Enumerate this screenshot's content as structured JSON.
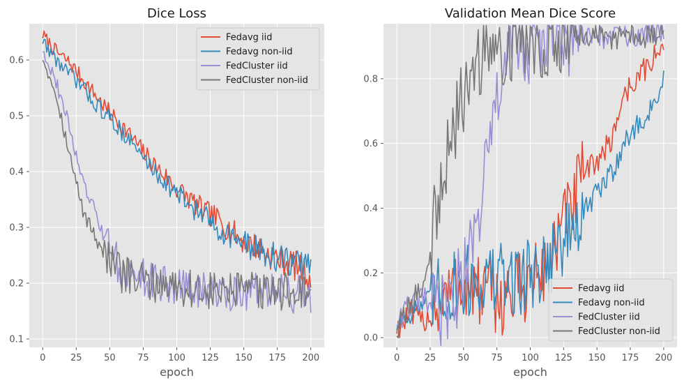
{
  "chart_data": [
    {
      "type": "line",
      "title": "Dice Loss",
      "xlabel": "epoch",
      "ylabel": "",
      "xlim": [
        -10,
        210
      ],
      "ylim": [
        0.085,
        0.665
      ],
      "xticks": [
        0,
        25,
        50,
        75,
        100,
        125,
        150,
        175,
        200
      ],
      "yticks": [
        0.1,
        0.2,
        0.3,
        0.4,
        0.5,
        0.6
      ],
      "ytick_labels": [
        "0.1",
        "0.2",
        "0.3",
        "0.4",
        "0.5",
        "0.6"
      ],
      "grid": true,
      "legend": "top-right",
      "series": [
        {
          "name": "Fedavg iid",
          "color": "#E24A33",
          "points": [
            [
              0,
              0.645
            ],
            [
              10,
              0.615
            ],
            [
              20,
              0.595
            ],
            [
              30,
              0.565
            ],
            [
              40,
              0.535
            ],
            [
              50,
              0.505
            ],
            [
              60,
              0.48
            ],
            [
              70,
              0.45
            ],
            [
              80,
              0.42
            ],
            [
              90,
              0.395
            ],
            [
              100,
              0.37
            ],
            [
              110,
              0.35
            ],
            [
              120,
              0.33
            ],
            [
              130,
              0.315
            ],
            [
              140,
              0.295
            ],
            [
              150,
              0.275
            ],
            [
              160,
              0.265
            ],
            [
              170,
              0.25
            ],
            [
              180,
              0.24
            ],
            [
              190,
              0.23
            ],
            [
              200,
              0.21
            ]
          ]
        },
        {
          "name": "Fedavg non-iid",
          "color": "#348ABD",
          "points": [
            [
              0,
              0.635
            ],
            [
              10,
              0.6
            ],
            [
              20,
              0.575
            ],
            [
              30,
              0.55
            ],
            [
              40,
              0.52
            ],
            [
              50,
              0.495
            ],
            [
              60,
              0.47
            ],
            [
              70,
              0.44
            ],
            [
              80,
              0.41
            ],
            [
              90,
              0.385
            ],
            [
              100,
              0.36
            ],
            [
              110,
              0.34
            ],
            [
              120,
              0.32
            ],
            [
              130,
              0.3
            ],
            [
              140,
              0.285
            ],
            [
              150,
              0.27
            ],
            [
              160,
              0.26
            ],
            [
              170,
              0.25
            ],
            [
              180,
              0.24
            ],
            [
              190,
              0.235
            ],
            [
              200,
              0.235
            ]
          ]
        },
        {
          "name": "FedCluster iid",
          "color": "#988ED5",
          "points": [
            [
              0,
              0.62
            ],
            [
              10,
              0.56
            ],
            [
              20,
              0.48
            ],
            [
              30,
              0.38
            ],
            [
              40,
              0.32
            ],
            [
              50,
              0.26
            ],
            [
              60,
              0.22
            ],
            [
              70,
              0.215
            ],
            [
              80,
              0.205
            ],
            [
              90,
              0.2
            ],
            [
              100,
              0.195
            ],
            [
              110,
              0.19
            ],
            [
              120,
              0.185
            ],
            [
              130,
              0.185
            ],
            [
              140,
              0.185
            ],
            [
              150,
              0.185
            ],
            [
              160,
              0.19
            ],
            [
              170,
              0.185
            ],
            [
              180,
              0.18
            ],
            [
              190,
              0.18
            ],
            [
              200,
              0.175
            ]
          ]
        },
        {
          "name": "FedCluster non-iid",
          "color": "#777777",
          "points": [
            [
              0,
              0.605
            ],
            [
              10,
              0.54
            ],
            [
              20,
              0.43
            ],
            [
              30,
              0.33
            ],
            [
              40,
              0.28
            ],
            [
              50,
              0.24
            ],
            [
              60,
              0.215
            ],
            [
              70,
              0.205
            ],
            [
              80,
              0.2
            ],
            [
              90,
              0.2
            ],
            [
              100,
              0.195
            ],
            [
              110,
              0.19
            ],
            [
              120,
              0.185
            ],
            [
              130,
              0.185
            ],
            [
              140,
              0.185
            ],
            [
              150,
              0.185
            ],
            [
              160,
              0.185
            ],
            [
              170,
              0.185
            ],
            [
              180,
              0.185
            ],
            [
              190,
              0.185
            ],
            [
              200,
              0.185
            ]
          ]
        }
      ]
    },
    {
      "type": "line",
      "title": "Validation Mean Dice Score",
      "xlabel": "epoch",
      "ylabel": "",
      "xlim": [
        -10,
        210
      ],
      "ylim": [
        -0.03,
        0.97
      ],
      "xticks": [
        0,
        25,
        50,
        75,
        100,
        125,
        150,
        175,
        200
      ],
      "yticks": [
        0.0,
        0.2,
        0.4,
        0.6,
        0.8
      ],
      "ytick_labels": [
        "0.0",
        "0.2",
        "0.4",
        "0.6",
        "0.8"
      ],
      "grid": true,
      "legend": "bottom-right",
      "series": [
        {
          "name": "Fedavg iid",
          "color": "#E24A33",
          "points": [
            [
              0,
              0.03
            ],
            [
              10,
              0.07
            ],
            [
              20,
              0.05
            ],
            [
              30,
              0.1
            ],
            [
              40,
              0.14
            ],
            [
              50,
              0.16
            ],
            [
              60,
              0.14
            ],
            [
              70,
              0.13
            ],
            [
              80,
              0.12
            ],
            [
              90,
              0.14
            ],
            [
              100,
              0.18
            ],
            [
              110,
              0.2
            ],
            [
              120,
              0.3
            ],
            [
              130,
              0.4
            ],
            [
              140,
              0.5
            ],
            [
              150,
              0.55
            ],
            [
              160,
              0.6
            ],
            [
              170,
              0.75
            ],
            [
              180,
              0.8
            ],
            [
              190,
              0.85
            ],
            [
              200,
              0.9
            ]
          ]
        },
        {
          "name": "Fedavg non-iid",
          "color": "#348ABD",
          "points": [
            [
              0,
              0.04
            ],
            [
              10,
              0.08
            ],
            [
              20,
              0.1
            ],
            [
              30,
              0.13
            ],
            [
              40,
              0.15
            ],
            [
              50,
              0.17
            ],
            [
              60,
              0.18
            ],
            [
              70,
              0.18
            ],
            [
              80,
              0.18
            ],
            [
              90,
              0.18
            ],
            [
              100,
              0.2
            ],
            [
              110,
              0.22
            ],
            [
              120,
              0.28
            ],
            [
              130,
              0.32
            ],
            [
              140,
              0.38
            ],
            [
              150,
              0.45
            ],
            [
              160,
              0.5
            ],
            [
              170,
              0.6
            ],
            [
              180,
              0.65
            ],
            [
              190,
              0.7
            ],
            [
              200,
              0.8
            ]
          ]
        },
        {
          "name": "FedCluster iid",
          "color": "#988ED5",
          "points": [
            [
              0,
              0.05
            ],
            [
              10,
              0.1
            ],
            [
              20,
              0.12
            ],
            [
              30,
              0.08
            ],
            [
              40,
              0.09
            ],
            [
              50,
              0.2
            ],
            [
              60,
              0.35
            ],
            [
              70,
              0.6
            ],
            [
              80,
              0.85
            ],
            [
              90,
              0.9
            ],
            [
              100,
              0.9
            ],
            [
              110,
              0.92
            ],
            [
              120,
              0.92
            ],
            [
              130,
              0.92
            ],
            [
              140,
              0.93
            ],
            [
              150,
              0.93
            ],
            [
              160,
              0.93
            ],
            [
              170,
              0.93
            ],
            [
              180,
              0.93
            ],
            [
              190,
              0.94
            ],
            [
              200,
              0.94
            ]
          ]
        },
        {
          "name": "FedCluster non-iid",
          "color": "#777777",
          "points": [
            [
              0,
              0.02
            ],
            [
              10,
              0.1
            ],
            [
              20,
              0.16
            ],
            [
              30,
              0.4
            ],
            [
              40,
              0.6
            ],
            [
              50,
              0.75
            ],
            [
              60,
              0.85
            ],
            [
              70,
              0.88
            ],
            [
              80,
              0.9
            ],
            [
              90,
              0.92
            ],
            [
              100,
              0.92
            ],
            [
              110,
              0.92
            ],
            [
              120,
              0.92
            ],
            [
              130,
              0.93
            ],
            [
              140,
              0.93
            ],
            [
              150,
              0.93
            ],
            [
              160,
              0.93
            ],
            [
              170,
              0.93
            ],
            [
              180,
              0.93
            ],
            [
              190,
              0.93
            ],
            [
              200,
              0.93
            ]
          ]
        }
      ]
    }
  ]
}
